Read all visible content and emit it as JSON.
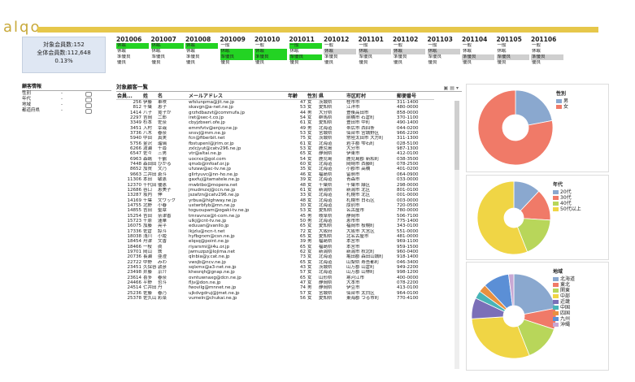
{
  "logo": "alqo",
  "summary": {
    "line1": "対象会員数:152",
    "line2": "全体会員数:112,648",
    "line3": "0.13%"
  },
  "months": [
    {
      "label": "201006",
      "rows": [
        {
          "t": "休眠",
          "c": "green"
        },
        {
          "t": "休眠",
          "c": "white"
        },
        {
          "t": "準優良",
          "c": "white"
        },
        {
          "t": "優良",
          "c": "white"
        }
      ]
    },
    {
      "label": "201007",
      "rows": [
        {
          "t": "休眠",
          "c": "green"
        },
        {
          "t": "休眠",
          "c": "white"
        },
        {
          "t": "準優良",
          "c": "white"
        },
        {
          "t": "優良",
          "c": "white"
        }
      ]
    },
    {
      "label": "201008",
      "rows": [
        {
          "t": "休眠",
          "c": "green"
        },
        {
          "t": "休眠",
          "c": "white"
        },
        {
          "t": "準優良",
          "c": "white"
        },
        {
          "t": "優良",
          "c": "white"
        }
      ]
    },
    {
      "label": "201009",
      "rows": [
        {
          "t": "一般",
          "c": "white"
        },
        {
          "t": "休眠",
          "c": "green"
        },
        {
          "t": "準優良",
          "c": "green"
        },
        {
          "t": "優良",
          "c": "white"
        }
      ]
    },
    {
      "label": "201010",
      "rows": [
        {
          "t": "一般",
          "c": "white"
        },
        {
          "t": "休眠",
          "c": "green"
        },
        {
          "t": "準優良",
          "c": "green"
        },
        {
          "t": "優良",
          "c": "white"
        }
      ]
    },
    {
      "label": "201011",
      "rows": [
        {
          "t": "一般",
          "c": "green"
        },
        {
          "t": "休眠",
          "c": "white"
        },
        {
          "t": "準優良",
          "c": "green"
        },
        {
          "t": "優良",
          "c": "white"
        }
      ]
    },
    {
      "label": "201012",
      "rows": [
        {
          "t": "一般",
          "c": "white"
        },
        {
          "t": "休眠",
          "c": "gray"
        },
        {
          "t": "準優良",
          "c": "white"
        },
        {
          "t": "優良",
          "c": "white"
        }
      ]
    },
    {
      "label": "201101",
      "rows": [
        {
          "t": "一般",
          "c": "white"
        },
        {
          "t": "休眠",
          "c": "gray"
        },
        {
          "t": "準優良",
          "c": "white"
        },
        {
          "t": "優良",
          "c": "white"
        }
      ]
    },
    {
      "label": "201102",
      "rows": [
        {
          "t": "一般",
          "c": "white"
        },
        {
          "t": "休眠",
          "c": "gray"
        },
        {
          "t": "準優良",
          "c": "white"
        },
        {
          "t": "優良",
          "c": "white"
        }
      ]
    },
    {
      "label": "201103",
      "rows": [
        {
          "t": "一般",
          "c": "white"
        },
        {
          "t": "休眠",
          "c": "gray"
        },
        {
          "t": "準優良",
          "c": "white"
        },
        {
          "t": "優良",
          "c": "white"
        }
      ]
    },
    {
      "label": "201104",
      "rows": [
        {
          "t": "一般",
          "c": "white"
        },
        {
          "t": "休眠",
          "c": "white"
        },
        {
          "t": "準優良",
          "c": "gray"
        },
        {
          "t": "優良",
          "c": "white"
        }
      ]
    },
    {
      "label": "201105",
      "rows": [
        {
          "t": "一般",
          "c": "white"
        },
        {
          "t": "休眠",
          "c": "white"
        },
        {
          "t": "準優良",
          "c": "gray"
        },
        {
          "t": "優良",
          "c": "white"
        }
      ]
    },
    {
      "label": "201106",
      "rows": [
        {
          "t": "一般",
          "c": "white"
        },
        {
          "t": "休眠",
          "c": "white"
        },
        {
          "t": "準優良",
          "c": "gray"
        },
        {
          "t": "優良",
          "c": "white"
        }
      ]
    }
  ],
  "filter": {
    "title": "顧客情報",
    "rows": [
      {
        "label": "性別",
        "dash": "-"
      },
      {
        "label": "年代",
        "dash": "-"
      },
      {
        "label": "地域",
        "dash": "-"
      },
      {
        "label": "都道府県",
        "dash": "-"
      }
    ]
  },
  "table": {
    "title": "対象顧客一覧",
    "icons": "▣ ▤ ▾",
    "headers": [
      "会員...",
      "姓",
      "名",
      "メールアドレス",
      "年齢",
      "性別",
      "県",
      "市区町村",
      "郵便番号"
    ],
    "rows": [
      [
        "256",
        "伊藤",
        "車咲",
        "wfslunpma@jit.ne.jp",
        "47",
        "女",
        "茨城県",
        "桂市市",
        "311-1400"
      ],
      [
        "812",
        "千葉",
        "恵子",
        "skavgn@a-net.ne.jp",
        "53",
        "女",
        "愛知県",
        "江洋市",
        "480-0000"
      ],
      [
        "1414",
        "八子",
        "寛子か",
        "grzhdbazvt@commufa.jp",
        "44",
        "男",
        "大分県",
        "豊後高田市",
        "858-0000"
      ],
      [
        "2297",
        "吉岡",
        "二郎",
        "iret@sec-t.co.jp",
        "54",
        "女",
        "群馬県",
        "前橋市 石倉町",
        "370-1100"
      ],
      [
        "3349",
        "杉本",
        "佐奈",
        "cbyjzbseri.ofe.jp",
        "61",
        "女",
        "愛知県",
        "豊田市 中町",
        "490-1400"
      ],
      [
        "3451",
        "入村",
        "幸哉",
        "emmfvtv@enjoy.ne.jp",
        "49",
        "男",
        "北海道",
        "帯広市 西四条",
        "044-0200"
      ],
      [
        "3736",
        "八木",
        "春奈",
        "snsvj@mm.ne.jp",
        "53",
        "女",
        "宮城県",
        "仙台市 宮城野区",
        "966-2200"
      ],
      [
        "5940",
        "中田",
        "真実",
        "fcn@fiberbit.net",
        "75",
        "女",
        "茨城県",
        "常陸太田市 大方町",
        "311-1300"
      ],
      [
        "5756",
        "金沢",
        "瑠璃",
        "fbstupenl@jrim.or.jp",
        "61",
        "女",
        "北海道",
        "岩手郡 雫石町",
        "028-5100"
      ],
      [
        "6266",
        "渡瀬",
        "千尋",
        "zxlcjyut@catv296.ne.jp",
        "53",
        "女",
        "鹿児島",
        "大分市",
        "987-1300"
      ],
      [
        "6547",
        "佐々",
        "三男",
        "vtr@altai.ne.jp",
        "65",
        "女",
        "静岡県",
        "伊東市",
        "412-0100"
      ],
      [
        "6963",
        "森嶋",
        "千鶴",
        "uocrxx@gol.com",
        "54",
        "女",
        "鹿児島",
        "鹿児島郡 新和町",
        "038-3500"
      ],
      [
        "7448",
        "森田田",
        "ひかる",
        "qmxb@infoaf.or.jp",
        "60",
        "女",
        "北海道",
        "岡崎市 西藤町",
        "078-2500"
      ],
      [
        "8652",
        "加賀",
        "文乃",
        "uhzaw@ac-tv.ne.jp",
        "35",
        "女",
        "北海道",
        "小郡市 高橋",
        "401-0200"
      ],
      [
        "9663",
        "二井田",
        "蒼斗",
        "glirtyuvc@nn-ho.ne.jp",
        "46",
        "女",
        "福島県",
        "留萌市",
        "064-0900"
      ],
      [
        "11306",
        "本田",
        "敏恵",
        "gaxfuj@tamatele.ne.jp",
        "39",
        "女",
        "北海道",
        "青森市",
        "033-0000"
      ],
      [
        "12370",
        "千代田",
        "優恵",
        "mwbtbo@mopera.net",
        "48",
        "女",
        "千葉県",
        "千葉市 緑区",
        "298-0000"
      ],
      [
        "12686",
        "谷口",
        "恵美子",
        "jmudmzxj@ccn.ne.jp",
        "61",
        "女",
        "新潟県",
        "新潟市 北区",
        "801-0100"
      ],
      [
        "13287",
        "坂内",
        "伸",
        "jszafzn@catv296.ne.jp",
        "33",
        "女",
        "北海道",
        "札幌市 北区",
        "001-0000"
      ],
      [
        "14169",
        "千葉",
        "文ワック",
        "yrbua@highway.ne.jp",
        "48",
        "女",
        "北海道",
        "札幌市 白石区",
        "003-0000"
      ],
      [
        "14755",
        "北野",
        "小春",
        "ustwrbfyb@mn.ne.jp",
        "30",
        "女",
        "北海道",
        "厚別市",
        "720-0500"
      ],
      [
        "14855",
        "吉田",
        "聖章",
        "toguoupam@ogaki-tv.ne.jp",
        "53",
        "女",
        "愛知県",
        "名古屋市",
        "780-0000"
      ],
      [
        "15254",
        "吉田",
        "奈津香",
        "tmravnce@t-com.ne.jp",
        "45",
        "男",
        "岐阜県",
        "静岡市",
        "506-7100"
      ],
      [
        "15723",
        "千原",
        "蓮華",
        "ulkj@cnt-tv.ne.jp",
        "50",
        "男",
        "北海道",
        "恵市市",
        "775-1400"
      ],
      [
        "16075",
        "加藤",
        "亮平",
        "eduuan@vanilo.jp",
        "65",
        "女",
        "愛知県",
        "福岡市 桜幌町",
        "343-0100"
      ],
      [
        "17336",
        "佐倉",
        "諒斗",
        "lkjzlu@ncn-t.net",
        "72",
        "女",
        "大阪府",
        "大阪市 大宮区",
        "551-0000"
      ],
      [
        "18038",
        "浅川",
        "小姫",
        "hyfbgrxm@csn.ne.jp",
        "65",
        "女",
        "愛知県",
        "北名古屋市",
        "481-0000"
      ],
      [
        "18454",
        "舟津",
        "文香",
        "elqsq@point.ne.jp",
        "39",
        "男",
        "福島県",
        "本宮市",
        "969-1100"
      ],
      [
        "18466",
        "一桜",
        "眞",
        "riyarsmi@i4u.or.jp",
        "65",
        "女",
        "福島県",
        "本宮市",
        "959-1500"
      ],
      [
        "19701",
        "岡山",
        "鉄",
        "jwmuzpz@lojima.net",
        "62",
        "女",
        "新潟県",
        "新潟市 秋北町",
        "960-0400"
      ],
      [
        "20736",
        "長瀬",
        "亜澄",
        "qlnbia@y.cat.ne.jp",
        "73",
        "女",
        "北海道",
        "亀田郡 森田山城町",
        "918-1400"
      ],
      [
        "22722",
        "中野",
        "みわ",
        "vwsjb@ncv.ne.jp",
        "65",
        "女",
        "北海道",
        "山梨県 寿吾都町",
        "046-3400"
      ],
      [
        "23451",
        "久保谷",
        "敦彦",
        "sqlxmx@a3-net.ne.jp",
        "43",
        "女",
        "茨城県",
        "山万郡 山倉町",
        "949-2200"
      ],
      [
        "23498",
        "井藤",
        "京介",
        "khesrqh@gnap.ne.jp",
        "57",
        "女",
        "北海道",
        "山万郡 山林町",
        "998-1200"
      ],
      [
        "23614",
        "喜多",
        "春奈",
        "ovntuwnaxg@dcn.ne.jp",
        "65",
        "女",
        "山形県",
        "寒河江市",
        "400-0000"
      ],
      [
        "24466",
        "平野",
        "哲斗",
        "fljv@don.ne.jp",
        "47",
        "女",
        "静岡県",
        "大本市",
        "078-2200"
      ],
      [
        "24514",
        "仁井田",
        "丹",
        "fwovilg@mnnet.ne.jp",
        "74",
        "男",
        "静岡県",
        "伊豆市",
        "413-0100"
      ],
      [
        "25236",
        "佐藤",
        "春乃",
        "ujkdvgdruj@jmet.ne.jp",
        "57",
        "女",
        "宮城県",
        "仙台市 太白区",
        "964-0100"
      ],
      [
        "25378",
        "佐久山",
        "彩菜",
        "vumeln@chukai.ne.jp",
        "56",
        "女",
        "愛知県",
        "東海郡 つる市町",
        "770-4100"
      ]
    ]
  },
  "charts": {
    "gender": {
      "title": "性別",
      "colors": [
        "#8aa8cf",
        "#f07a68"
      ],
      "chart_data": {
        "type": "pie",
        "categories": [
          "男",
          "女"
        ],
        "values": [
          22,
          78
        ]
      }
    },
    "age": {
      "title": "年代",
      "colors": [
        "#8aa8cf",
        "#f07a68",
        "#b8d65a",
        "#f0d545"
      ],
      "chart_data": {
        "type": "pie",
        "categories": [
          "20代",
          "30代",
          "40代",
          "50代以上"
        ],
        "values": [
          12,
          14,
          18,
          56
        ]
      }
    },
    "region": {
      "title": "地域",
      "colors": [
        "#8aa8cf",
        "#f07a68",
        "#b8d65a",
        "#f0d545",
        "#7b6fb8",
        "#48b4b8",
        "#e89040",
        "#5b8fd6",
        "#c9a8d4"
      ],
      "chart_data": {
        "type": "pie",
        "categories": [
          "北海道",
          "東北",
          "関東",
          "中部",
          "近畿",
          "中国",
          "四国",
          "九州",
          "沖縄"
        ],
        "values": [
          22,
          8,
          14,
          30,
          8,
          3,
          3,
          10,
          2
        ]
      }
    }
  }
}
